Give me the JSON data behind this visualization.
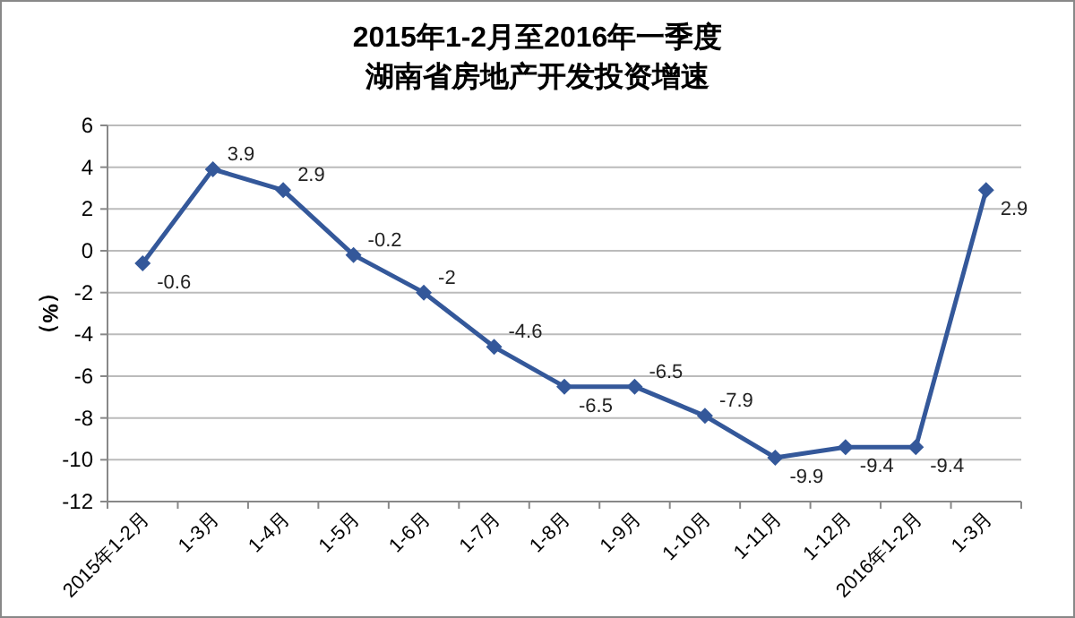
{
  "chart_data": {
    "type": "line",
    "title": "2015年1-2月至2016年一季度",
    "subtitle": "湖南省房地产开发投资增速",
    "ylabel": "（%）",
    "categories": [
      "2015年1-2月",
      "1-3月",
      "1-4月",
      "1-5月",
      "1-6月",
      "1-7月",
      "1-8月",
      "1-9月",
      "1-10月",
      "1-11月",
      "1-12月",
      "2016年1-2月",
      "1-3月"
    ],
    "series": [
      {
        "color": "#34589a",
        "values": [
          -0.6,
          3.9,
          2.9,
          -0.2,
          -2,
          -4.6,
          -6.5,
          -6.5,
          -7.9,
          -9.9,
          -9.4,
          -9.4,
          2.9
        ]
      }
    ],
    "ylim": [
      -12,
      6
    ],
    "yticks": [
      -12,
      -10,
      -8,
      -6,
      -4,
      -2,
      0,
      2,
      4,
      6
    ],
    "grid": "y",
    "marker": "diamond",
    "line_style": "solid",
    "data_labels": true
  }
}
